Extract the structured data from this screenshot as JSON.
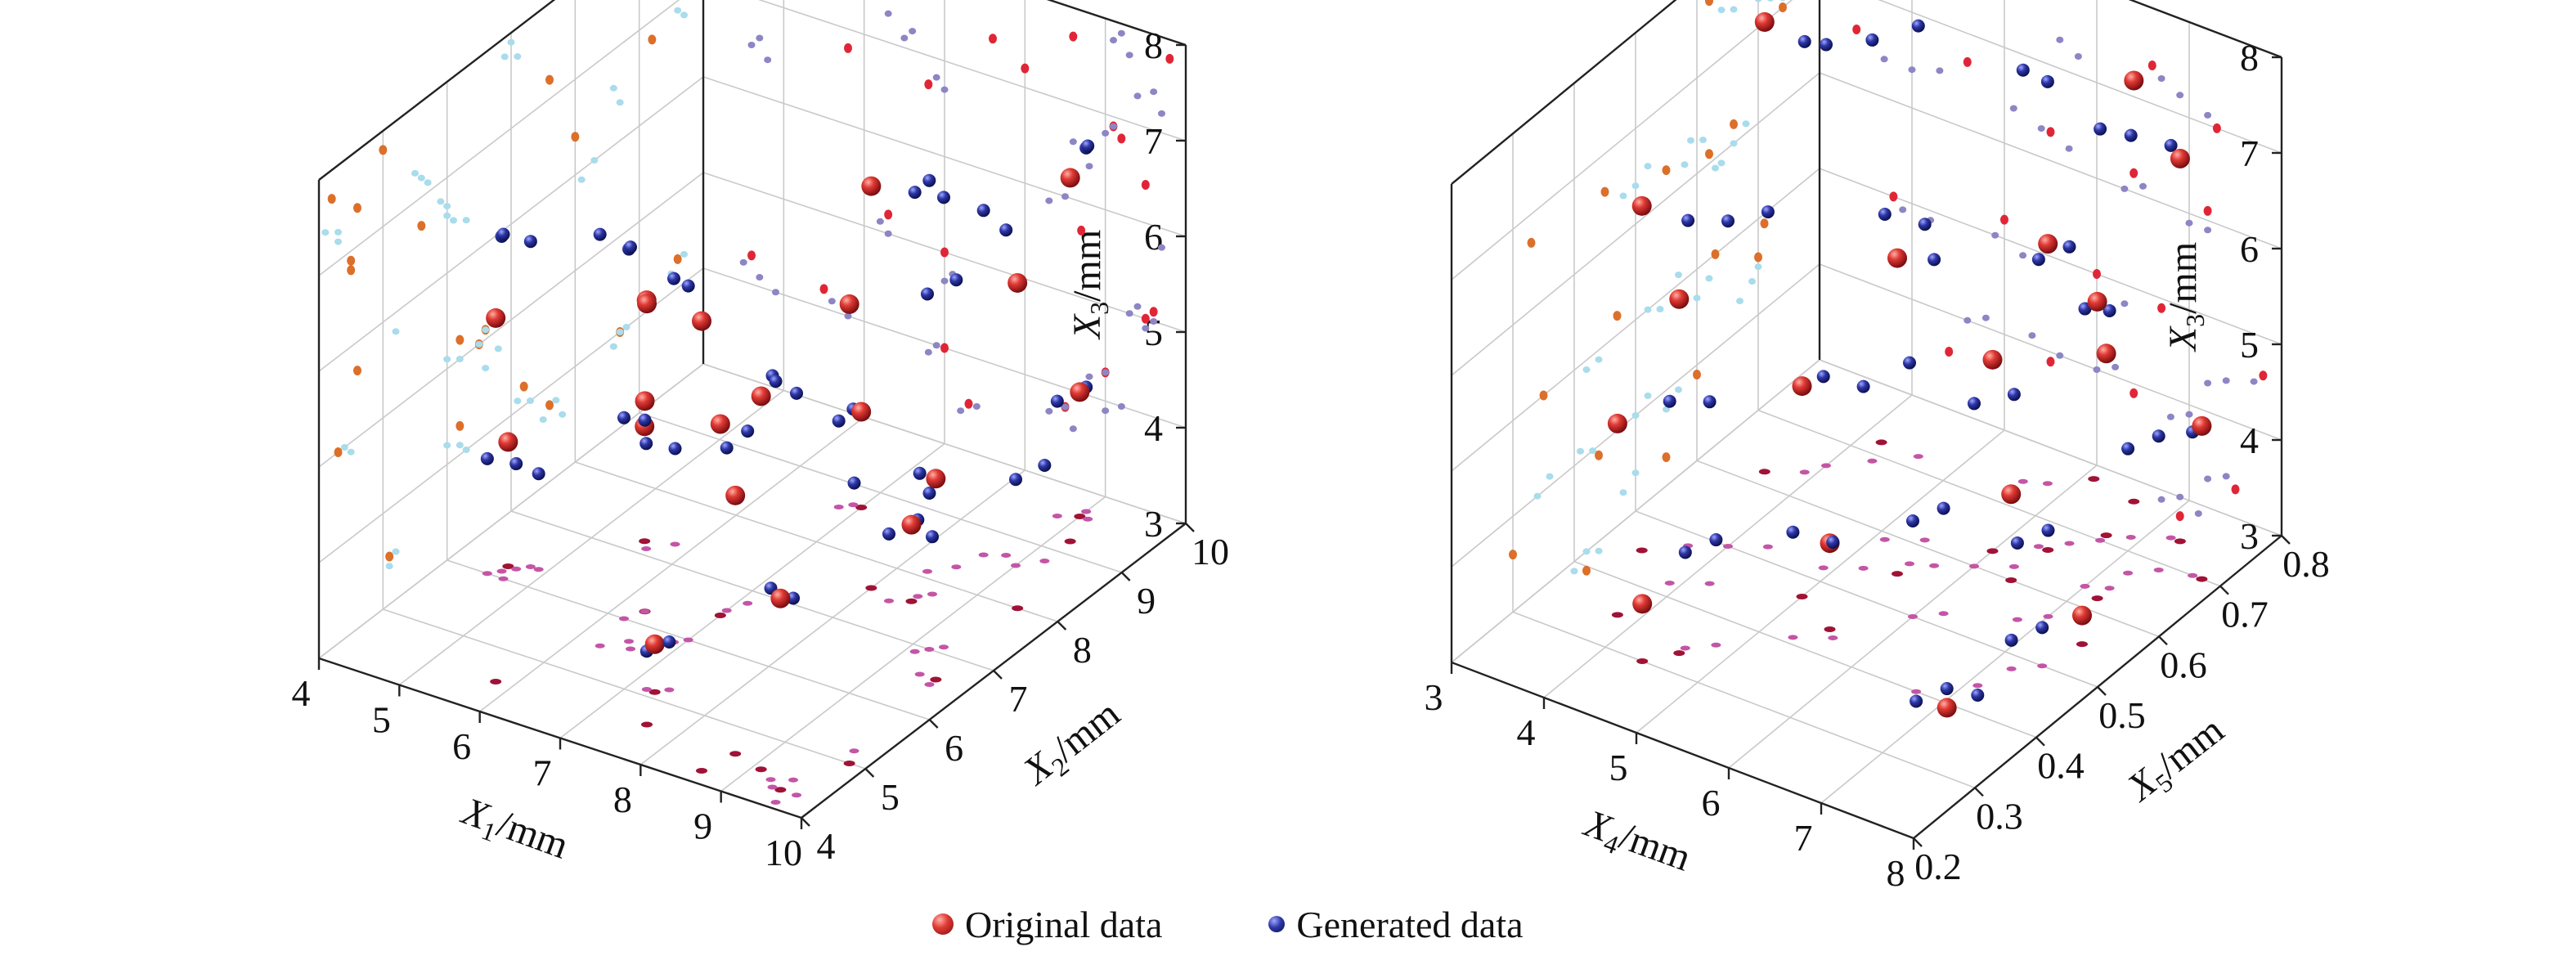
{
  "colors": {
    "original": "#d42a2a",
    "generated": "#26309a",
    "proj_wall_left": "#8c86c4",
    "proj_wall_left_red": "#e02636",
    "proj_wall_right": "#a9dcec",
    "proj_wall_right_orange": "#dc6f2a",
    "proj_floor": "#c455a6",
    "proj_floor_red": "#a01236",
    "grid": "#c9c9c9",
    "axis": "#222222"
  },
  "legend": {
    "original_label": "Original data",
    "generated_label": "Generated data"
  },
  "chart_data": [
    {
      "type": "scatter",
      "subtype": "scatter3d",
      "title": "",
      "xlabel": "X1/mm",
      "ylabel": "X2/mm",
      "zlabel": "X3/mm",
      "x_label": {
        "base": "X",
        "sub": "1",
        "unit": "/mm"
      },
      "y_label": {
        "base": "X",
        "sub": "2",
        "unit": "/mm"
      },
      "z_label": {
        "base": "X",
        "sub": "3",
        "unit": "/mm"
      },
      "xlim": [
        4,
        10
      ],
      "ylim": [
        4,
        10
      ],
      "zlim": [
        3,
        8
      ],
      "x_ticks": [
        "4",
        "5",
        "6",
        "7",
        "8",
        "9",
        "10"
      ],
      "y_ticks": [
        "4",
        "5",
        "6",
        "7",
        "8",
        "9",
        "10"
      ],
      "z_ticks": [
        "3",
        "4",
        "5",
        "6",
        "7",
        "8"
      ],
      "grid": true,
      "projections": [
        "back-left wall",
        "back-right wall",
        "floor"
      ],
      "series": [
        {
          "name": "Original data",
          "marker": "sphere-large",
          "points": [
            [
              9.1,
              4.5,
              6.9
            ],
            [
              8.6,
              4.2,
              7.7
            ],
            [
              7.6,
              4.6,
              7.4
            ],
            [
              5.8,
              4.5,
              6.8
            ],
            [
              6.8,
              5.6,
              6.7
            ],
            [
              9.8,
              5.0,
              7.8
            ],
            [
              8.0,
              7.6,
              7.2
            ],
            [
              9.2,
              9.2,
              6.8
            ],
            [
              9.5,
              8.0,
              6.4
            ],
            [
              6.3,
              6.2,
              5.2
            ],
            [
              7.0,
              6.5,
              5.0
            ],
            [
              8.7,
              4.6,
              5.7
            ],
            [
              9.5,
              4.3,
              5.0
            ],
            [
              9.6,
              6.6,
              5.1
            ],
            [
              4.6,
              6.2,
              4.3
            ],
            [
              5.5,
              7.2,
              4.2
            ],
            [
              7.0,
              8.7,
              4.0
            ],
            [
              9.0,
              9.6,
              4.3
            ],
            [
              7.3,
              5.1,
              3.5
            ],
            [
              8.5,
              7.6,
              3.8
            ]
          ]
        },
        {
          "name": "Generated data",
          "marker": "sphere-small",
          "points": [
            [
              4.6,
              6.1,
              6.5
            ],
            [
              4.8,
              6.3,
              6.4
            ],
            [
              4.7,
              6.0,
              6.6
            ],
            [
              6.3,
              5.5,
              7.3
            ],
            [
              6.5,
              5.7,
              7.1
            ],
            [
              6.6,
              5.6,
              7.2
            ],
            [
              6.9,
              5.9,
              6.8
            ],
            [
              7.0,
              6.0,
              6.7
            ],
            [
              9.6,
              4.1,
              7.4
            ],
            [
              9.7,
              4.3,
              7.2
            ],
            [
              9.4,
              4.3,
              7.3
            ],
            [
              9.1,
              6.9,
              7.8
            ],
            [
              9.3,
              7.1,
              7.7
            ],
            [
              9.2,
              7.0,
              7.9
            ],
            [
              8.6,
              8.6,
              6.6
            ],
            [
              8.8,
              8.7,
              6.4
            ],
            [
              8.3,
              8.1,
              5.9
            ],
            [
              8.5,
              8.3,
              6.0
            ],
            [
              9.0,
              9.7,
              6.8
            ],
            [
              9.1,
              9.6,
              6.9
            ],
            [
              6.2,
              6.0,
              5.1
            ],
            [
              6.3,
              6.2,
              5.0
            ],
            [
              7.0,
              6.6,
              4.7
            ],
            [
              7.1,
              6.8,
              4.8
            ],
            [
              9.3,
              4.4,
              5.0
            ],
            [
              9.5,
              4.5,
              4.9
            ],
            [
              9.7,
              5.2,
              5.8
            ],
            [
              9.6,
              6.5,
              5.0
            ],
            [
              9.4,
              6.6,
              5.1
            ],
            [
              4.5,
              6.0,
              4.2
            ],
            [
              4.7,
              6.2,
              4.1
            ],
            [
              4.9,
              6.3,
              4.0
            ],
            [
              5.6,
              7.1,
              4.1
            ],
            [
              5.8,
              7.3,
              4.0
            ],
            [
              6.8,
              8.6,
              3.9
            ],
            [
              6.9,
              8.7,
              4.0
            ],
            [
              8.8,
              9.5,
              4.2
            ],
            [
              9.0,
              9.7,
              4.3
            ],
            [
              7.2,
              5.1,
              3.4
            ],
            [
              7.4,
              5.2,
              3.5
            ],
            [
              8.3,
              7.5,
              3.7
            ],
            [
              8.5,
              7.7,
              3.8
            ],
            [
              8.6,
              7.8,
              3.6
            ],
            [
              9.0,
              8.6,
              3.9
            ],
            [
              9.2,
              8.8,
              4.0
            ]
          ]
        }
      ]
    },
    {
      "type": "scatter",
      "subtype": "scatter3d",
      "title": "",
      "xlabel": "X4/mm",
      "ylabel": "X5/mm",
      "zlabel": "X3/mm",
      "x_label": {
        "base": "X",
        "sub": "4",
        "unit": "/mm"
      },
      "y_label": {
        "base": "X",
        "sub": "5",
        "unit": "/mm"
      },
      "z_label": {
        "base": "X",
        "sub": "3",
        "unit": "/mm"
      },
      "xlim": [
        3,
        8
      ],
      "ylim": [
        0.2,
        0.8
      ],
      "zlim": [
        3,
        8
      ],
      "x_ticks": [
        "3",
        "4",
        "5",
        "6",
        "7",
        "8"
      ],
      "y_ticks": [
        "0.2",
        "0.3",
        "0.4",
        "0.5",
        "0.6",
        "0.7",
        "0.8"
      ],
      "z_ticks": [
        "3",
        "4",
        "5",
        "6",
        "7",
        "8"
      ],
      "grid": true,
      "projections": [
        "back-left wall",
        "back-right wall",
        "floor"
      ],
      "series": [
        {
          "name": "Original data",
          "marker": "sphere-large",
          "points": [
            [
              3.6,
              0.62,
              7.7
            ],
            [
              3.4,
              0.45,
              6.6
            ],
            [
              4.2,
              0.72,
              7.8
            ],
            [
              6.1,
              0.78,
              8.3
            ],
            [
              6.6,
              0.77,
              7.4
            ],
            [
              4.6,
              0.33,
              6.7
            ],
            [
              5.5,
              0.55,
              6.3
            ],
            [
              6.4,
              0.66,
              6.2
            ],
            [
              7.2,
              0.62,
              6.1
            ],
            [
              7.3,
              0.74,
              7.0
            ],
            [
              3.8,
              0.35,
              5.0
            ],
            [
              5.0,
              0.47,
              5.2
            ],
            [
              6.0,
              0.63,
              5.0
            ],
            [
              6.7,
              0.71,
              4.9
            ],
            [
              7.8,
              0.7,
              4.6
            ],
            [
              4.4,
              0.3,
              3.6
            ],
            [
              5.5,
              0.44,
              3.9
            ],
            [
              6.4,
              0.6,
              3.9
            ],
            [
              7.5,
              0.55,
              3.3
            ],
            [
              6.9,
              0.42,
              2.8
            ]
          ]
        },
        {
          "name": "Generated data",
          "marker": "sphere-small",
          "points": [
            [
              3.9,
              0.64,
              7.5
            ],
            [
              4.0,
              0.66,
              7.4
            ],
            [
              4.3,
              0.69,
              7.4
            ],
            [
              4.6,
              0.72,
              7.5
            ],
            [
              5.6,
              0.74,
              7.3
            ],
            [
              5.8,
              0.75,
              7.2
            ],
            [
              6.7,
              0.7,
              7.3
            ],
            [
              6.9,
              0.72,
              7.2
            ],
            [
              7.2,
              0.74,
              7.1
            ],
            [
              3.7,
              0.48,
              6.4
            ],
            [
              4.0,
              0.5,
              6.4
            ],
            [
              4.3,
              0.52,
              6.5
            ],
            [
              5.1,
              0.59,
              6.4
            ],
            [
              5.4,
              0.61,
              6.3
            ],
            [
              5.7,
              0.58,
              6.2
            ],
            [
              6.3,
              0.66,
              6.0
            ],
            [
              6.5,
              0.68,
              6.1
            ],
            [
              7.0,
              0.63,
              5.9
            ],
            [
              7.2,
              0.64,
              5.9
            ],
            [
              3.9,
              0.42,
              4.9
            ],
            [
              4.2,
              0.44,
              4.9
            ],
            [
              4.9,
              0.52,
              5.0
            ],
            [
              5.2,
              0.54,
              4.9
            ],
            [
              5.5,
              0.57,
              5.1
            ],
            [
              6.0,
              0.6,
              4.7
            ],
            [
              6.3,
              0.62,
              4.8
            ],
            [
              7.2,
              0.67,
              4.3
            ],
            [
              7.4,
              0.69,
              4.4
            ],
            [
              7.7,
              0.7,
              4.5
            ],
            [
              4.6,
              0.34,
              4.0
            ],
            [
              4.8,
              0.36,
              4.1
            ],
            [
              5.3,
              0.41,
              4.1
            ],
            [
              5.6,
              0.43,
              4.0
            ],
            [
              6.0,
              0.5,
              4.0
            ],
            [
              6.2,
              0.52,
              4.1
            ],
            [
              6.8,
              0.55,
              3.8
            ],
            [
              7.0,
              0.57,
              3.9
            ],
            [
              7.2,
              0.48,
              3.3
            ],
            [
              7.4,
              0.5,
              3.4
            ],
            [
              6.7,
              0.4,
              2.9
            ],
            [
              6.9,
              0.42,
              3.0
            ],
            [
              7.1,
              0.44,
              2.9
            ]
          ]
        }
      ]
    }
  ]
}
